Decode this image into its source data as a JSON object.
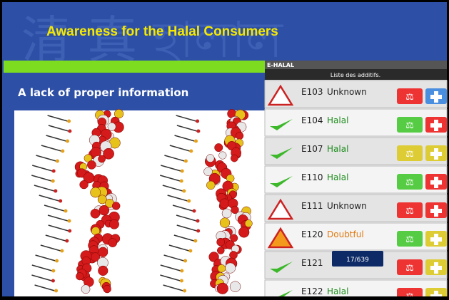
{
  "slide": {
    "title": "Awareness for the Halal Consumers",
    "subtitle": "A lack of proper information"
  },
  "app": {
    "header": "E-HALAL",
    "list_title": "Liste des additifs.",
    "counter": "17/639",
    "items": [
      {
        "code": "E103",
        "status": "Unknown"
      },
      {
        "code": "E104",
        "status": "Halal"
      },
      {
        "code": "E107",
        "status": "Halal"
      },
      {
        "code": "E110",
        "status": "Halal"
      },
      {
        "code": "E111",
        "status": "Unknown"
      },
      {
        "code": "E120",
        "status": "Doubtful"
      },
      {
        "code": "E121"
      },
      {
        "code": "E122",
        "status": "Halal"
      }
    ]
  }
}
